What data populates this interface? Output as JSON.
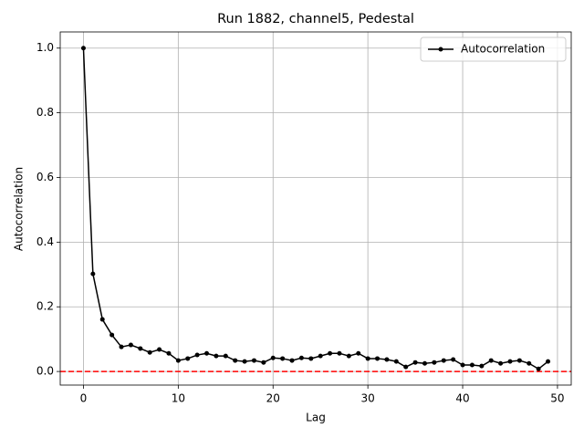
{
  "chart_data": {
    "type": "line",
    "title": "Run 1882, channel5, Pedestal",
    "xlabel": "Lag",
    "ylabel": "Autocorrelation",
    "x": [
      0,
      1,
      2,
      3,
      4,
      5,
      6,
      7,
      8,
      9,
      10,
      11,
      12,
      13,
      14,
      15,
      16,
      17,
      18,
      19,
      20,
      21,
      22,
      23,
      24,
      25,
      26,
      27,
      28,
      29,
      30,
      31,
      32,
      33,
      34,
      35,
      36,
      37,
      38,
      39,
      40,
      41,
      42,
      43,
      44,
      45,
      46,
      47,
      48,
      49
    ],
    "series": [
      {
        "name": "Autocorrelation",
        "color": "#000000",
        "values": [
          1.0,
          0.302,
          0.161,
          0.113,
          0.076,
          0.082,
          0.071,
          0.059,
          0.068,
          0.056,
          0.034,
          0.04,
          0.051,
          0.056,
          0.048,
          0.048,
          0.034,
          0.031,
          0.034,
          0.028,
          0.042,
          0.04,
          0.034,
          0.042,
          0.04,
          0.048,
          0.056,
          0.056,
          0.048,
          0.056,
          0.04,
          0.04,
          0.037,
          0.031,
          0.014,
          0.028,
          0.025,
          0.028,
          0.034,
          0.037,
          0.02,
          0.02,
          0.017,
          0.034,
          0.025,
          0.031,
          0.034,
          0.025,
          0.008,
          0.031
        ]
      }
    ],
    "hline": {
      "value": 0,
      "color": "#ff0000"
    },
    "xlim": [
      -2.45,
      51.45
    ],
    "xticks": [
      0,
      10,
      20,
      30,
      40,
      50
    ],
    "ylim": [
      -0.042,
      1.05
    ],
    "yticks": [
      {
        "value": 0,
        "label": "0.0"
      },
      {
        "value": 0.2,
        "label": "0.2"
      },
      {
        "value": 0.4,
        "label": "0.4"
      },
      {
        "value": 0.6,
        "label": "0.6"
      },
      {
        "value": 0.8,
        "label": "0.8"
      },
      {
        "value": 1,
        "label": "1.0"
      }
    ],
    "grid": true,
    "legend": "upper-right"
  }
}
